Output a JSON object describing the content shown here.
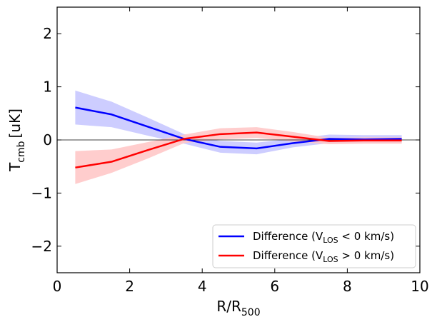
{
  "chart_data": {
    "type": "line",
    "title": "",
    "xlabel": {
      "main": "R/R",
      "sub": "500"
    },
    "ylabel": {
      "main": "T",
      "sub": "cmb",
      "unit": "[uK]"
    },
    "xlim": [
      0,
      10
    ],
    "ylim": [
      -2.5,
      2.5
    ],
    "xticks": [
      0,
      2,
      4,
      6,
      8,
      10
    ],
    "yticks": [
      -2,
      -1,
      0,
      1,
      2
    ],
    "xtick_labels": [
      "0",
      "2",
      "4",
      "6",
      "8",
      "10"
    ],
    "ytick_labels": [
      "−2",
      "−1",
      "0",
      "1",
      "2"
    ],
    "reference_line_y": 0,
    "x": [
      0.5,
      1.5,
      2.5,
      3.5,
      4.5,
      5.5,
      6.5,
      7.5,
      8.5,
      9.5
    ],
    "series": [
      {
        "name": "Difference (V_LOS < 0 km/s)",
        "legend": {
          "prefix": "Difference (V",
          "sub": "LOS",
          "suffix": " < 0 km/s)"
        },
        "color": "#0000ff",
        "band_color": "#c8c8ff",
        "values": [
          0.61,
          0.48,
          0.25,
          0.02,
          -0.13,
          -0.16,
          -0.06,
          0.02,
          0.01,
          0.02
        ],
        "lower": [
          0.29,
          0.24,
          0.08,
          -0.07,
          -0.24,
          -0.27,
          -0.14,
          -0.06,
          -0.06,
          -0.05
        ],
        "upper": [
          0.93,
          0.72,
          0.42,
          0.11,
          -0.02,
          -0.05,
          0.02,
          0.1,
          0.09,
          0.09
        ]
      },
      {
        "name": "Difference (V_LOS > 0 km/s)",
        "legend": {
          "prefix": "Difference (V",
          "sub": "LOS",
          "suffix": " > 0 km/s)"
        },
        "color": "#ff0000",
        "band_color": "#ffc8c8",
        "values": [
          -0.52,
          -0.41,
          -0.19,
          0.02,
          0.11,
          0.14,
          0.06,
          -0.02,
          -0.01,
          -0.01
        ],
        "lower": [
          -0.83,
          -0.62,
          -0.35,
          -0.06,
          0.01,
          0.04,
          -0.03,
          -0.08,
          -0.07,
          -0.07
        ],
        "upper": [
          -0.21,
          -0.18,
          -0.04,
          0.1,
          0.22,
          0.24,
          0.15,
          0.04,
          0.05,
          0.05
        ]
      }
    ],
    "legend_position": "lower-right"
  }
}
